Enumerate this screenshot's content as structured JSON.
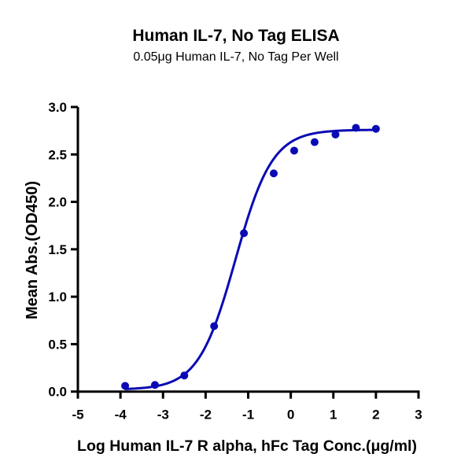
{
  "chart_data": {
    "type": "scatter",
    "title": "Human IL-7, No Tag ELISA",
    "subtitle": "0.05μg Human IL-7, No Tag Per Well",
    "xlabel": "Log Human IL-7 R alpha, hFc Tag Conc.(μg/ml)",
    "ylabel": "Mean Abs.(OD450)",
    "xlim": [
      -5,
      3
    ],
    "ylim": [
      0,
      3.0
    ],
    "xticks": [
      "-5",
      "-4",
      "-3",
      "-2",
      "-1",
      "0",
      "1",
      "2",
      "3"
    ],
    "yticks": [
      "0.0",
      "0.5",
      "1.0",
      "1.5",
      "2.0",
      "2.5",
      "3.0"
    ],
    "grid": false,
    "color": "#0a0ab4",
    "series": [
      {
        "x": [
          -3.89,
          -3.19,
          -2.5,
          -1.8,
          -1.1,
          -0.4,
          0.08,
          0.56,
          1.05,
          1.53,
          2.0
        ],
        "y": [
          0.06,
          0.07,
          0.17,
          0.69,
          1.67,
          2.3,
          2.54,
          2.63,
          2.71,
          2.78,
          2.77
        ]
      }
    ],
    "fit": {
      "model": "4PL",
      "bottom": 0.02,
      "top": 2.76,
      "logEC50": -1.3,
      "hill": 1.0,
      "x_range": [
        -3.9,
        2.0
      ]
    }
  }
}
